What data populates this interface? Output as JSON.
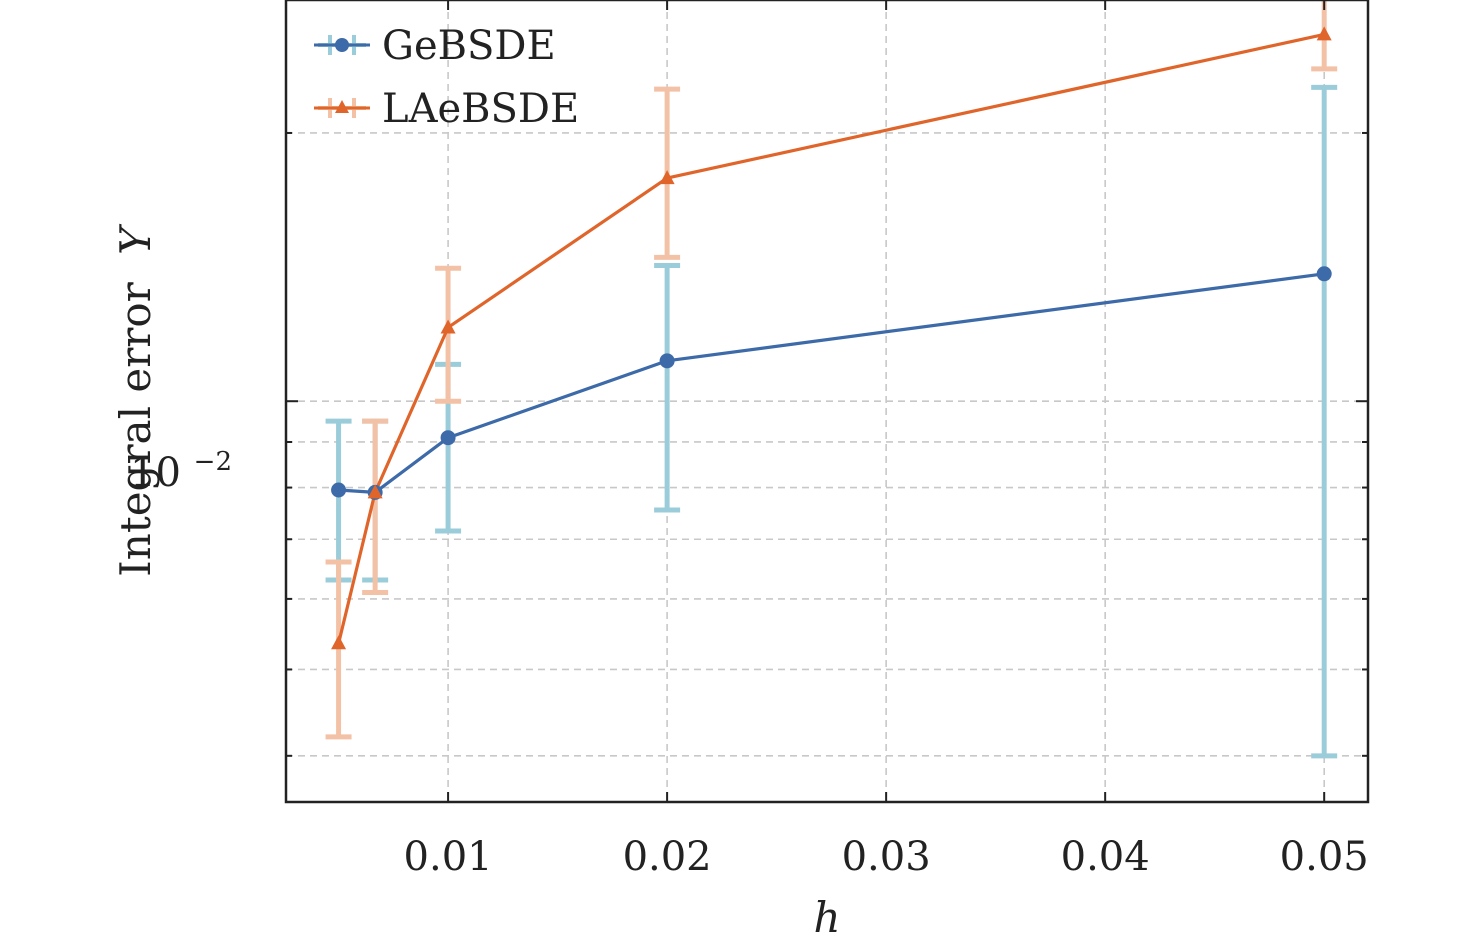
{
  "chart_data": {
    "type": "line",
    "xlabel": "h",
    "ylabel": "Integral error",
    "ylabel_symbol": "Y",
    "xlim": [
      0.0026,
      0.052
    ],
    "ylim": [
      0.00355,
      0.0282
    ],
    "yscale": "log",
    "grid": true,
    "legend_position": "top-left",
    "xticks": [
      0.01,
      0.02,
      0.03,
      0.04,
      0.05
    ],
    "xtick_labels": [
      "0.01",
      "0.02",
      "0.03",
      "0.04",
      "0.05"
    ],
    "ytick_major": {
      "base": "10",
      "exponent": "−2",
      "value": 0.01
    },
    "yminor_ticks": [
      0.004,
      0.005,
      0.006,
      0.007,
      0.008,
      0.009,
      0.02
    ],
    "series": [
      {
        "name": "GeBSDE",
        "color": "#3d6aa8",
        "errcolor": "#9bccd9",
        "marker": "circle",
        "x": [
          0.005,
          0.00667,
          0.01,
          0.02,
          0.05
        ],
        "y": [
          0.00795,
          0.0079,
          0.0091,
          0.0111,
          0.0139
        ],
        "err_low": [
          0.0063,
          0.0063,
          0.00715,
          0.00755,
          0.004
        ],
        "err_high": [
          0.0095,
          0.0095,
          0.011,
          0.0142,
          0.0225
        ]
      },
      {
        "name": "LAeBSDE",
        "color": "#e0652b",
        "errcolor": "#f3c2a6",
        "marker": "triangle",
        "x": [
          0.005,
          0.00667,
          0.01,
          0.02,
          0.05
        ],
        "y": [
          0.00535,
          0.0079,
          0.0121,
          0.0178,
          0.0258
        ],
        "err_low": [
          0.0042,
          0.0061,
          0.01,
          0.0145,
          0.0236
        ],
        "err_high": [
          0.0066,
          0.0095,
          0.0141,
          0.0224,
          0.0292
        ]
      }
    ]
  }
}
